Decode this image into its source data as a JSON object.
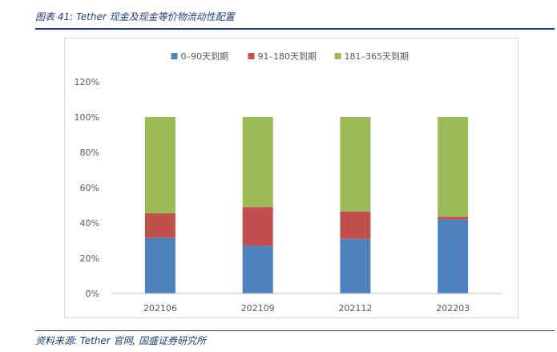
{
  "figure": {
    "title": "图表 41: Tether 现金及现金等价物流动性配置",
    "source": "资料来源: Tether 官网, 国盛证券研究所"
  },
  "chart_data": {
    "type": "bar",
    "stacked": true,
    "title": "",
    "xlabel": "",
    "ylabel": "",
    "categories": [
      "202106",
      "202109",
      "202112",
      "202203"
    ],
    "series": [
      {
        "name": "0–90天到期",
        "color": "#4f81bd",
        "values": [
          31.5,
          27,
          31,
          42
        ]
      },
      {
        "name": "91–180天到期",
        "color": "#c0504d",
        "values": [
          14,
          22,
          15.5,
          1.5
        ]
      },
      {
        "name": "181–365天到期",
        "color": "#9bbb59",
        "values": [
          54.5,
          51,
          53.5,
          56.5
        ]
      }
    ],
    "y_ticks": [
      "0%",
      "20%",
      "40%",
      "60%",
      "80%",
      "100%",
      "120%"
    ],
    "ylim": [
      0,
      120
    ],
    "grid": false,
    "legend_position": "top"
  }
}
